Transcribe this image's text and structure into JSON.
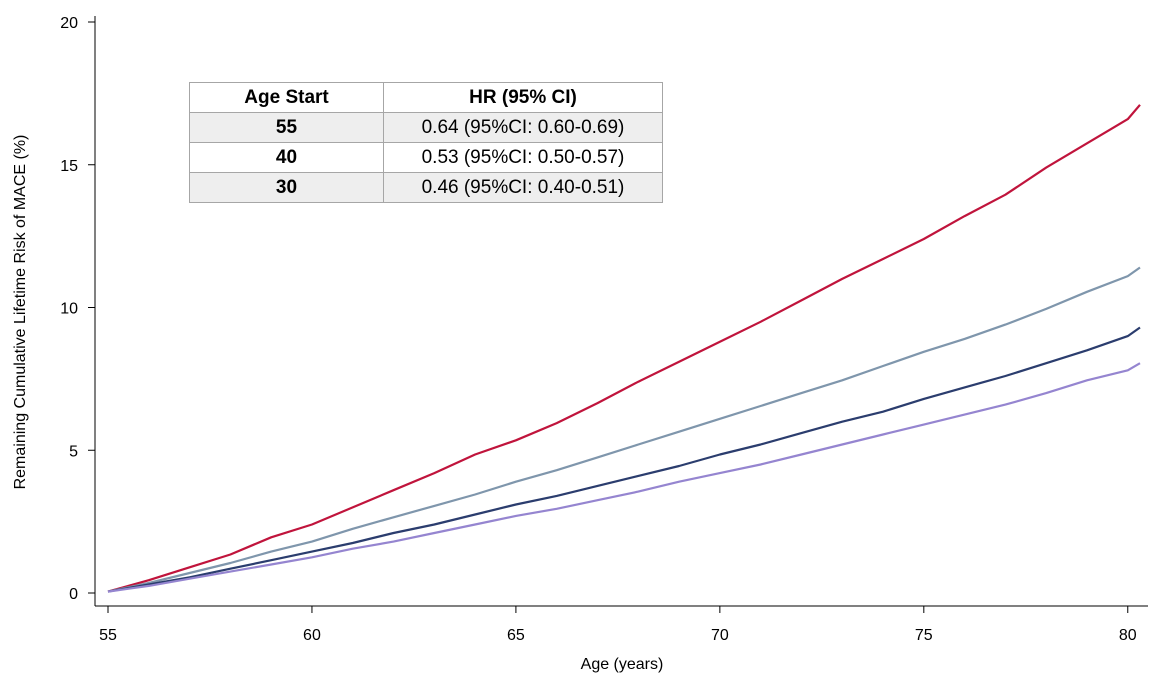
{
  "chart_data": {
    "type": "line",
    "title": "",
    "xlabel": "Age (years)",
    "ylabel": "Remaining Cumulative Lifetime Risk of MACE (%)",
    "xlim": [
      55,
      80.3
    ],
    "ylim": [
      0,
      20
    ],
    "xticks": [
      "55",
      "60",
      "65",
      "70",
      "75",
      "80"
    ],
    "yticks": [
      "0",
      "5",
      "10",
      "15",
      "20"
    ],
    "grid": false,
    "legend": "none",
    "x": [
      55,
      56,
      57,
      58,
      59,
      60,
      61,
      62,
      63,
      64,
      65,
      66,
      67,
      68,
      69,
      70,
      71,
      72,
      73,
      74,
      75,
      76,
      77,
      78,
      79,
      80,
      80.3
    ],
    "series": [
      {
        "color": "#c0143c",
        "values": [
          0.05,
          0.45,
          0.9,
          1.35,
          1.95,
          2.4,
          3.0,
          3.6,
          4.2,
          4.85,
          5.35,
          5.95,
          6.65,
          7.4,
          8.1,
          8.8,
          9.5,
          10.25,
          11.0,
          11.7,
          12.4,
          13.2,
          13.95,
          14.9,
          15.75,
          16.6,
          17.1
        ]
      },
      {
        "color": "#7f96ac",
        "values": [
          0.05,
          0.35,
          0.7,
          1.05,
          1.45,
          1.8,
          2.25,
          2.65,
          3.05,
          3.45,
          3.9,
          4.3,
          4.75,
          5.2,
          5.65,
          6.1,
          6.55,
          7.0,
          7.45,
          7.95,
          8.45,
          8.9,
          9.4,
          9.95,
          10.55,
          11.1,
          11.4
        ]
      },
      {
        "color": "#2b3d6e",
        "values": [
          0.05,
          0.3,
          0.55,
          0.85,
          1.15,
          1.45,
          1.75,
          2.1,
          2.4,
          2.75,
          3.1,
          3.4,
          3.75,
          4.1,
          4.45,
          4.85,
          5.2,
          5.6,
          6.0,
          6.35,
          6.8,
          7.2,
          7.6,
          8.05,
          8.5,
          9.0,
          9.3
        ]
      },
      {
        "color": "#9585d0",
        "values": [
          0.05,
          0.25,
          0.5,
          0.75,
          1.0,
          1.25,
          1.55,
          1.8,
          2.1,
          2.4,
          2.7,
          2.95,
          3.25,
          3.55,
          3.9,
          4.2,
          4.5,
          4.85,
          5.2,
          5.55,
          5.9,
          6.25,
          6.6,
          7.0,
          7.45,
          7.8,
          8.05
        ]
      }
    ]
  },
  "inset_table": {
    "headers": [
      "Age Start",
      "HR (95% CI)"
    ],
    "rows": [
      [
        "55",
        "0.64 (95%CI: 0.60-0.69)"
      ],
      [
        "40",
        "0.53 (95%CI: 0.50-0.57)"
      ],
      [
        "30",
        "0.46 (95%CI: 0.40-0.51)"
      ]
    ]
  }
}
